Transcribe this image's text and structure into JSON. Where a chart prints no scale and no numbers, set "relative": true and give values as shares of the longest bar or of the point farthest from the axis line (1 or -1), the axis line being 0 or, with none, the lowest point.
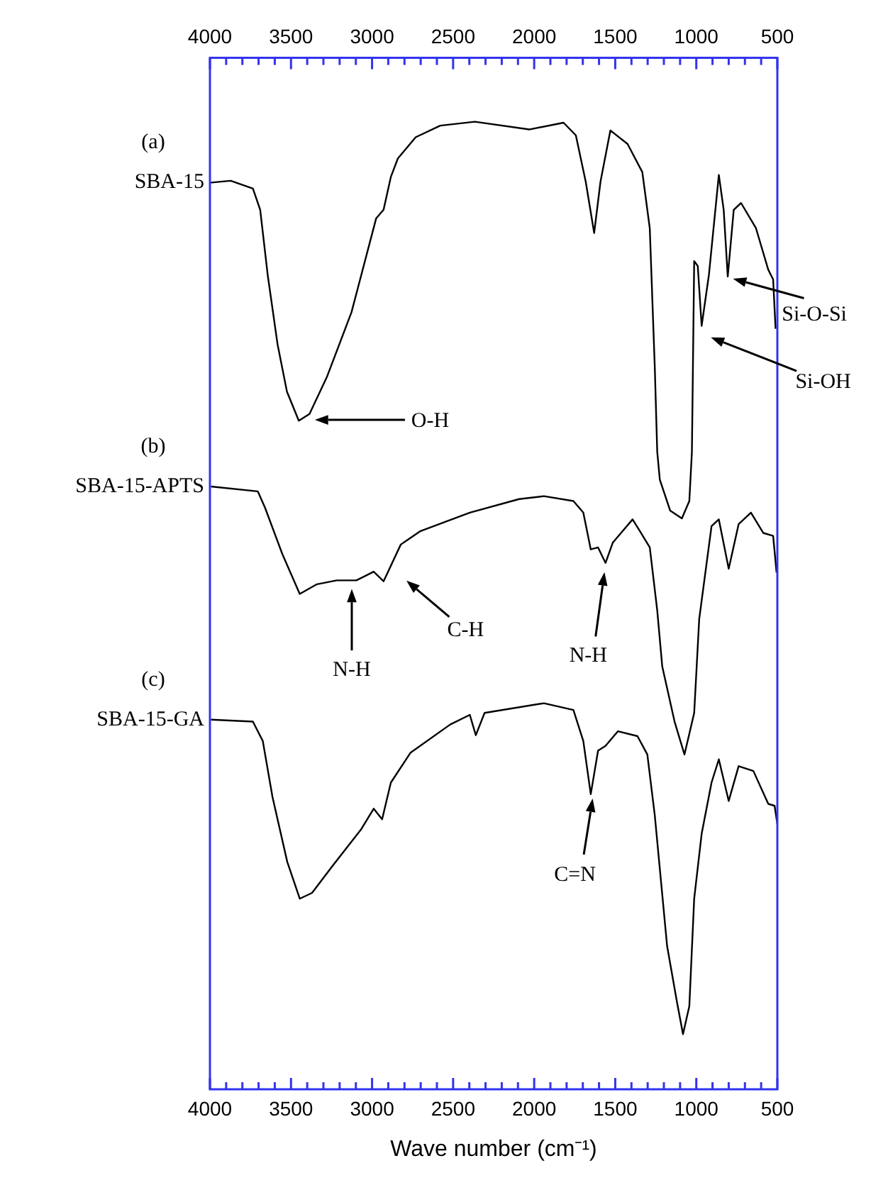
{
  "chart_data": {
    "type": "line",
    "relative": true,
    "xlabel": "Wave number (cm⁻¹)",
    "xlim": [
      4000,
      500
    ],
    "x2lim": [
      4000,
      500
    ],
    "xticks": [
      4000,
      {
        "value": 3900,
        "label": null
      },
      {
        "value": 3800,
        "label": null
      },
      {
        "value": 3700,
        "label": null
      },
      {
        "value": 3600,
        "label": null
      },
      3500,
      {
        "value": 3400,
        "label": null
      },
      {
        "value": 3300,
        "label": null
      },
      {
        "value": 3200,
        "label": null
      },
      {
        "value": 3100,
        "label": null
      },
      3000,
      {
        "value": 2900,
        "label": null
      },
      {
        "value": 2800,
        "label": null
      },
      {
        "value": 2700,
        "label": null
      },
      {
        "value": 2600,
        "label": null
      },
      2500,
      {
        "value": 2400,
        "label": null
      },
      {
        "value": 2300,
        "label": null
      },
      {
        "value": 2200,
        "label": null
      },
      {
        "value": 2100,
        "label": null
      },
      2000,
      {
        "value": 1900,
        "label": null
      },
      {
        "value": 1800,
        "label": null
      },
      {
        "value": 1700,
        "label": null
      },
      {
        "value": 1600,
        "label": null
      },
      1500,
      {
        "value": 1400,
        "label": null
      },
      {
        "value": 1300,
        "label": null
      },
      {
        "value": 1200,
        "label": null
      },
      {
        "value": 1100,
        "label": null
      },
      1000,
      {
        "value": 900,
        "label": null
      },
      {
        "value": 800,
        "label": null
      },
      {
        "value": 700,
        "label": null
      },
      {
        "value": 600,
        "label": null
      },
      500
    ],
    "x2ticks": [
      4000,
      {
        "value": 3900,
        "label": null
      },
      {
        "value": 3800,
        "label": null
      },
      {
        "value": 3700,
        "label": null
      },
      {
        "value": 3600,
        "label": null
      },
      3500,
      {
        "value": 3400,
        "label": null
      },
      {
        "value": 3300,
        "label": null
      },
      {
        "value": 3200,
        "label": null
      },
      {
        "value": 3100,
        "label": null
      },
      3000,
      {
        "value": 2900,
        "label": null
      },
      {
        "value": 2800,
        "label": null
      },
      {
        "value": 2700,
        "label": null
      },
      {
        "value": 2600,
        "label": null
      },
      2500,
      {
        "value": 2400,
        "label": null
      },
      {
        "value": 2300,
        "label": null
      },
      {
        "value": 2200,
        "label": null
      },
      {
        "value": 2100,
        "label": null
      },
      2000,
      {
        "value": 1900,
        "label": null
      },
      {
        "value": 1800,
        "label": null
      },
      {
        "value": 1700,
        "label": null
      },
      {
        "value": 1600,
        "label": null
      },
      1500,
      {
        "value": 1400,
        "label": null
      },
      {
        "value": 1300,
        "label": null
      },
      {
        "value": 1200,
        "label": null
      },
      {
        "value": 1100,
        "label": null
      },
      1000,
      {
        "value": 900,
        "label": null
      },
      {
        "value": 800,
        "label": null
      },
      {
        "value": 700,
        "label": null
      },
      {
        "value": 600,
        "label": null
      },
      500
    ],
    "legend": false,
    "grid": false,
    "series": [
      {
        "name": "SBA-15",
        "color": "#000000",
        "x": [
          4000,
          3872,
          3735,
          3690,
          3644,
          3583,
          3525,
          3452,
          3386,
          3279,
          3127,
          2975,
          2929,
          2884,
          2841,
          2731,
          2579,
          2366,
          2031,
          1819,
          1743,
          1682,
          1630,
          1591,
          1530,
          1424,
          1333,
          1287,
          1256,
          1241,
          1225,
          1161,
          1089,
          1043,
          1027,
          1013,
          991,
          967,
          922,
          861,
          831,
          806,
          769,
          724,
          632,
          556,
          526,
          511
        ],
        "values": [
          0.937,
          0.939,
          0.931,
          0.909,
          0.842,
          0.77,
          0.721,
          0.691,
          0.698,
          0.736,
          0.803,
          0.9,
          0.909,
          0.943,
          0.962,
          0.984,
          0.996,
          1.0,
          0.992,
          0.999,
          0.986,
          0.938,
          0.885,
          0.938,
          0.991,
          0.977,
          0.948,
          0.89,
          0.746,
          0.659,
          0.63,
          0.598,
          0.59,
          0.608,
          0.659,
          0.856,
          0.851,
          0.789,
          0.842,
          0.945,
          0.909,
          0.84,
          0.909,
          0.916,
          0.89,
          0.847,
          0.837,
          0.786
        ]
      },
      {
        "name": "SBA-15-APTS",
        "color": "#000000",
        "x": [
          3994,
          3705,
          3660,
          3553,
          3446,
          3340,
          3218,
          3097,
          2990,
          2929,
          2823,
          2701,
          2397,
          2093,
          1940,
          1758,
          1697,
          1651,
          1606,
          1560,
          1515,
          1454,
          1393,
          1348,
          1287,
          1241,
          1210,
          1134,
          1073,
          1013,
          982,
          967,
          906,
          861,
          800,
          739,
          663,
          587,
          526,
          505
        ],
        "values": [
          0.623,
          0.618,
          0.601,
          0.553,
          0.512,
          0.522,
          0.526,
          0.526,
          0.535,
          0.525,
          0.563,
          0.577,
          0.596,
          0.61,
          0.613,
          0.608,
          0.596,
          0.558,
          0.56,
          0.544,
          0.565,
          0.577,
          0.589,
          0.577,
          0.56,
          0.495,
          0.437,
          0.38,
          0.346,
          0.389,
          0.486,
          0.505,
          0.582,
          0.589,
          0.538,
          0.584,
          0.596,
          0.575,
          0.572,
          0.534
        ]
      },
      {
        "name": "SBA-15-GA",
        "color": "#000000",
        "x": [
          3994,
          3735,
          3674,
          3614,
          3523,
          3446,
          3370,
          3248,
          3066,
          2990,
          2938,
          2884,
          2762,
          2518,
          2397,
          2360,
          2306,
          1940,
          1758,
          1697,
          1651,
          1606,
          1560,
          1484,
          1363,
          1302,
          1256,
          1180,
          1119,
          1082,
          1043,
          1013,
          967,
          906,
          861,
          800,
          739,
          648,
          556,
          517,
          500
        ],
        "values": [
          0.382,
          0.38,
          0.36,
          0.302,
          0.235,
          0.197,
          0.203,
          0.23,
          0.269,
          0.29,
          0.279,
          0.317,
          0.348,
          0.377,
          0.387,
          0.366,
          0.389,
          0.399,
          0.392,
          0.36,
          0.305,
          0.35,
          0.355,
          0.37,
          0.365,
          0.346,
          0.283,
          0.148,
          0.09,
          0.057,
          0.086,
          0.197,
          0.264,
          0.317,
          0.341,
          0.298,
          0.334,
          0.329,
          0.295,
          0.293,
          0.274
        ]
      }
    ],
    "annotations": [
      "(a)",
      "(b)",
      "(c)",
      "O-H",
      "Si-O-Si",
      "Si-OH",
      "N-H",
      "C-H",
      "N-H",
      "C=N"
    ]
  }
}
